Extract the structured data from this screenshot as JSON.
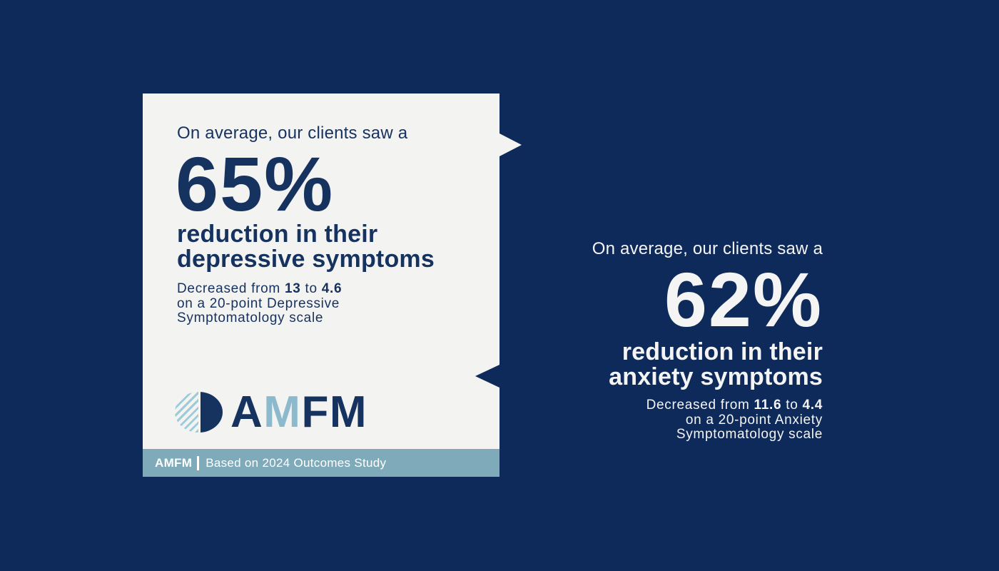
{
  "colors": {
    "background_navy": "#0d2a5a",
    "card_background": "#f3f3f2",
    "navy_text": "#16325f",
    "white_text": "#f4f4f4",
    "footer_bar_teal": "#7eaaba",
    "logo_light_blue": "#8db9cc",
    "logo_stripe_blue": "#9ccbd9"
  },
  "left_card": {
    "intro": "On average, our clients saw a",
    "stat_value": "65%",
    "headline_line1": "reduction in their",
    "headline_line2": "depressive symptoms",
    "detail_prefix": "Decreased from",
    "detail_from": "13",
    "detail_mid": "to",
    "detail_to": "4.6",
    "detail_line2": "on a 20-point Depressive",
    "detail_line3": "Symptomatology scale",
    "logo": {
      "letter1": "A",
      "letter2": "M",
      "letter3": "F",
      "letter4": "M"
    },
    "footer": {
      "brand": "AMFM",
      "text": "Based on 2024 Outcomes Study"
    }
  },
  "right_panel": {
    "intro": "On average, our clients saw a",
    "stat_value": "62%",
    "headline_line1": "reduction in their",
    "headline_line2": "anxiety symptoms",
    "detail_prefix": "Decreased from",
    "detail_from": "11.6",
    "detail_mid": "to",
    "detail_to": "4.4",
    "detail_line2": "on a 20-point Anxiety",
    "detail_line3": "Symptomatology scale"
  }
}
